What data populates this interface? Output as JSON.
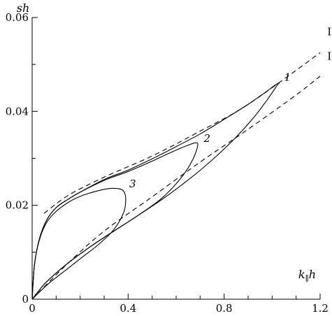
{
  "chart_data": {
    "type": "line",
    "xlabel": "k_∥h",
    "xlabel_main": "k",
    "xlabel_sub": "∥",
    "xlabel_tail": "h",
    "ylabel": "sh",
    "xlim": [
      0,
      1.2
    ],
    "ylim": [
      0,
      0.06
    ],
    "xticks": [
      0,
      0.4,
      0.8,
      1.2
    ],
    "xtick_labels": [
      "0",
      "0.4",
      "0.8",
      "1.2"
    ],
    "yticks": [
      0,
      0.02,
      0.04,
      0.06
    ],
    "ytick_labels": [
      "0",
      "0.02",
      "0.04",
      "0.06"
    ],
    "grid": false,
    "series": [
      {
        "name": "1",
        "style": "solid",
        "label_at": [
          1.05,
          0.0465
        ],
        "x": [
          0.0,
          0.01,
          0.03,
          0.06,
          0.1,
          0.15,
          0.2,
          0.3,
          0.4,
          0.5,
          0.6,
          0.7,
          0.8,
          0.9,
          0.97,
          1.01,
          1.03,
          1.02,
          0.98,
          0.92,
          0.84,
          0.74,
          0.64,
          0.54,
          0.44,
          0.34,
          0.24,
          0.14,
          0.06,
          0.02,
          0.0
        ],
        "y": [
          0.0,
          0.0075,
          0.0128,
          0.0168,
          0.0195,
          0.0213,
          0.0228,
          0.0255,
          0.0275,
          0.0299,
          0.0325,
          0.0352,
          0.0383,
          0.0415,
          0.044,
          0.0455,
          0.0461,
          0.0455,
          0.0425,
          0.0385,
          0.034,
          0.0292,
          0.025,
          0.0212,
          0.0178,
          0.0145,
          0.0111,
          0.0073,
          0.0037,
          0.0013,
          0.0
        ]
      },
      {
        "name": "2",
        "style": "solid",
        "label_at": [
          0.715,
          0.0335
        ],
        "x": [
          0.0,
          0.01,
          0.03,
          0.06,
          0.1,
          0.15,
          0.2,
          0.3,
          0.4,
          0.5,
          0.58,
          0.64,
          0.68,
          0.69,
          0.67,
          0.62,
          0.54,
          0.44,
          0.34,
          0.24,
          0.14,
          0.06,
          0.02,
          0.0
        ],
        "y": [
          0.0,
          0.0075,
          0.0128,
          0.0168,
          0.0195,
          0.0213,
          0.0228,
          0.0253,
          0.0272,
          0.0294,
          0.0313,
          0.0326,
          0.0333,
          0.0328,
          0.0298,
          0.0258,
          0.0215,
          0.0178,
          0.0145,
          0.0111,
          0.0073,
          0.0037,
          0.0013,
          0.0
        ]
      },
      {
        "name": "3",
        "style": "solid",
        "label_at": [
          0.405,
          0.0238
        ],
        "x": [
          0.0,
          0.01,
          0.03,
          0.06,
          0.1,
          0.15,
          0.2,
          0.26,
          0.31,
          0.35,
          0.38,
          0.39,
          0.38,
          0.34,
          0.28,
          0.21,
          0.14,
          0.07,
          0.02,
          0.0
        ],
        "y": [
          0.0,
          0.0075,
          0.0126,
          0.0163,
          0.0187,
          0.0206,
          0.0219,
          0.0229,
          0.0235,
          0.0236,
          0.0231,
          0.0212,
          0.0183,
          0.0148,
          0.0118,
          0.009,
          0.0062,
          0.0034,
          0.001,
          0.0
        ]
      },
      {
        "name": "I",
        "style": "dashed",
        "label_at": [
          1.23,
          0.0562
        ],
        "x": [
          0.05,
          0.15,
          0.3,
          0.5,
          0.7,
          0.9,
          1.2
        ],
        "y": [
          0.0183,
          0.0221,
          0.026,
          0.0305,
          0.0358,
          0.0415,
          0.0525
        ]
      },
      {
        "name": "II",
        "style": "dashed",
        "label_at": [
          1.23,
          0.051
        ],
        "x": [
          0.0,
          0.15,
          0.3,
          0.5,
          0.7,
          0.9,
          1.1,
          1.2
        ],
        "y": [
          0.0,
          0.0077,
          0.0145,
          0.0218,
          0.0292,
          0.0362,
          0.0435,
          0.0475
        ]
      }
    ]
  }
}
